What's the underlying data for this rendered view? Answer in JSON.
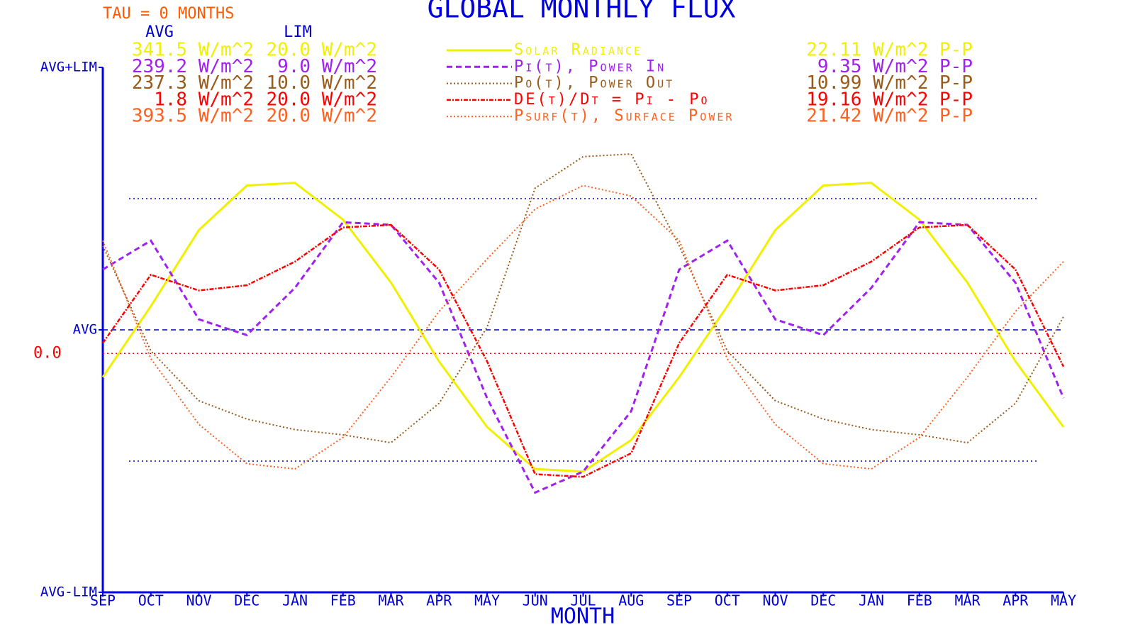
{
  "chart_data": {
    "type": "line",
    "title": "GLOBAL MONTHLY FLUX",
    "subtitle": "TAU = 0 MONTHS",
    "avg_header": "AVG",
    "lim_header": "LIM",
    "xlabel": "MONTH",
    "categories": [
      "SEP",
      "OCT",
      "NOV",
      "DEC",
      "JAN",
      "FEB",
      "MAR",
      "APR",
      "MAY",
      "JUN",
      "JUL",
      "AUG",
      "SEP",
      "OCT",
      "NOV",
      "DEC",
      "JAN",
      "FEB",
      "MAR",
      "APR",
      "MAY"
    ],
    "ylim": [
      -1,
      1
    ],
    "yticks": [
      {
        "value": -1,
        "label": "AVG-LIM"
      },
      {
        "value": 0,
        "label": "AVG"
      },
      {
        "value": 1,
        "label": "AVG+LIM"
      }
    ],
    "reference_lines": [
      0.5,
      -0.5
    ],
    "zero_line": {
      "value": -0.09,
      "label": "0.0"
    },
    "series": [
      {
        "name": "Solar Radiance",
        "color": "#f0f000",
        "avg_label": "341.5 W/m^2",
        "lim_label": "20.0 W/m^2",
        "pp_label": "22.11 W/m^2 P-P",
        "values": [
          -0.18,
          0.09,
          0.38,
          0.55,
          0.56,
          0.42,
          0.18,
          -0.12,
          -0.37,
          -0.53,
          -0.54,
          -0.42,
          -0.18,
          0.09,
          0.38,
          0.55,
          0.56,
          0.42,
          0.18,
          -0.12,
          -0.37
        ]
      },
      {
        "name": "Pi(t), Power In",
        "color": "#a020f0",
        "avg_label": "239.2 W/m^2",
        "lim_label": "9.0 W/m^2",
        "pp_label": "9.35 W/m^2 P-P",
        "values": [
          0.23,
          0.34,
          0.04,
          -0.02,
          0.16,
          0.41,
          0.4,
          0.18,
          -0.26,
          -0.62,
          -0.54,
          -0.31,
          0.23,
          0.34,
          0.04,
          -0.02,
          0.16,
          0.41,
          0.4,
          0.18,
          -0.26
        ]
      },
      {
        "name": "Po(t), Power Out",
        "color": "#9a5a1a",
        "avg_label": "237.3 W/m^2",
        "lim_label": "10.0 W/m^2",
        "pp_label": "10.99 W/m^2 P-P",
        "values": [
          0.32,
          -0.08,
          -0.27,
          -0.34,
          -0.38,
          -0.4,
          -0.43,
          -0.28,
          0.01,
          0.54,
          0.66,
          0.67,
          0.32,
          -0.08,
          -0.27,
          -0.34,
          -0.38,
          -0.4,
          -0.43,
          -0.28,
          0.05
        ]
      },
      {
        "name": "DE(t)/Dt = Pi - Po",
        "color": "#ff0000",
        "avg_label": "1.8 W/m^2",
        "lim_label": "20.0 W/m^2",
        "pp_label": "19.16 W/m^2 P-P",
        "values": [
          -0.05,
          0.21,
          0.15,
          0.17,
          0.26,
          0.39,
          0.4,
          0.23,
          -0.12,
          -0.55,
          -0.56,
          -0.47,
          -0.05,
          0.21,
          0.15,
          0.17,
          0.26,
          0.39,
          0.4,
          0.23,
          -0.14
        ]
      },
      {
        "name": "Psurf(t), Surface Power",
        "color": "#ff6020",
        "avg_label": "393.5 W/m^2",
        "lim_label": "20.0 W/m^2",
        "pp_label": "21.42 W/m^2 P-P",
        "values": [
          0.34,
          -0.11,
          -0.36,
          -0.51,
          -0.53,
          -0.41,
          -0.18,
          0.07,
          0.27,
          0.46,
          0.55,
          0.51,
          0.34,
          -0.11,
          -0.36,
          -0.51,
          -0.53,
          -0.41,
          -0.18,
          0.07,
          0.26
        ]
      }
    ]
  }
}
